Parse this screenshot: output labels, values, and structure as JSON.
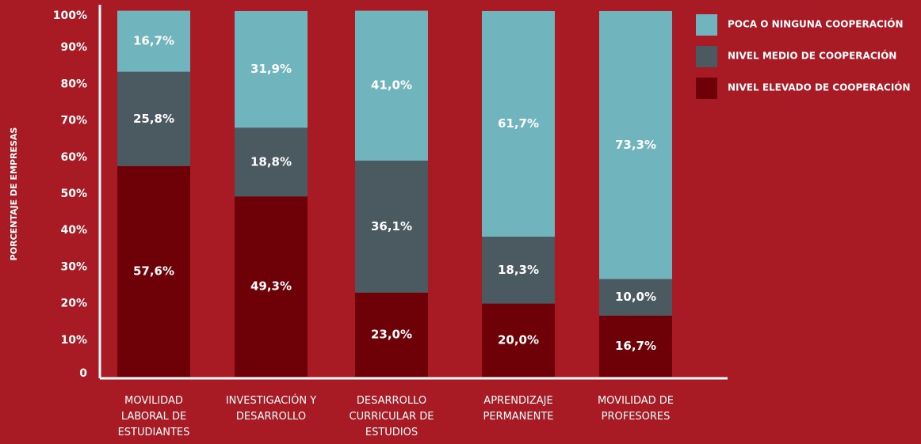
{
  "chart_data": {
    "type": "stacked_bar",
    "y_label": "PORCENTAJE DE EMPRESAS",
    "categories": [
      "MOVILIDAD LABORAL DE ESTUDIANTES",
      "INVESTIGACIÓN Y DESARROLLO",
      "DESARROLLO CURRICULAR DE ESTUDIOS",
      "APRENDIZAJE PERMANENTE",
      "MOVILIDAD DE PROFESORES"
    ],
    "series": [
      {
        "name": "NIVEL ELEVADO DE COOPERACIÓN",
        "color": "#6e0008",
        "values": [
          57.6,
          49.3,
          23.0,
          20.0,
          16.7
        ],
        "value_labels": [
          "57,6%",
          "49,3%",
          "23,0%",
          "20,0%",
          "16,7%"
        ]
      },
      {
        "name": "NIVEL MEDIO DE COOPERACIÓN",
        "color": "#4b5a61",
        "values": [
          25.8,
          18.8,
          36.1,
          18.3,
          10.0
        ],
        "value_labels": [
          "25,8%",
          "18,8%",
          "36,1%",
          "18,3%",
          "10,0%"
        ]
      },
      {
        "name": "POCA O NINGUNA COOPERACIÓN",
        "color": "#70b4be",
        "values": [
          16.7,
          31.9,
          41.0,
          61.7,
          73.3
        ],
        "value_labels": [
          "16,7%",
          "31,9%",
          "41,0%",
          "61,7%",
          "73,3%"
        ]
      }
    ],
    "ylim": [
      0,
      100
    ],
    "yticks": [
      0,
      {
        "value": 10,
        "label": "10%"
      },
      {
        "value": 20,
        "label": "20%"
      },
      {
        "value": 30,
        "label": "30%"
      },
      {
        "value": 40,
        "label": "40%"
      },
      {
        "value": 50,
        "label": "50%"
      },
      {
        "value": 60,
        "label": "60%"
      },
      {
        "value": 70,
        "label": "70%"
      },
      {
        "value": 80,
        "label": "80%"
      },
      {
        "value": 90,
        "label": "90%"
      },
      {
        "value": 100,
        "label": "100%"
      }
    ],
    "legend": "top-right"
  }
}
